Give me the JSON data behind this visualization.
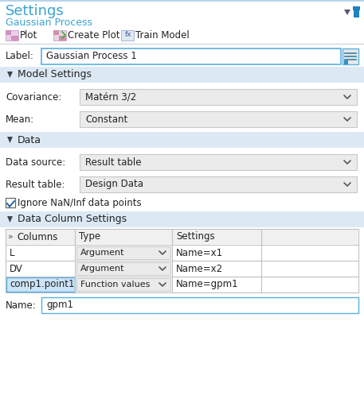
{
  "title": "Settings",
  "subtitle": "Gaussian Process",
  "toolbar_items": [
    "Plot",
    "Create Plot",
    "Train Model"
  ],
  "label_text": "Gaussian Process 1",
  "bg_color": "#ffffff",
  "header_color": "#3ba3d0",
  "section_bg": "#dce9f5",
  "top_border_color": "#b8d4e8",
  "dropdown_bg": "#ebebeb",
  "dropdown_border": "#c8c8c8",
  "input_border": "#5ab0e0",
  "table_border": "#c0c0c0",
  "selected_row_bg": "#cce4f7",
  "selected_row_border": "#5ab0e0",
  "table_header_bg": "#f0f0f0",
  "icon_pink": "#c060a0",
  "icon_blue": "#4090c0",
  "pin_color": "#2080c0",
  "section_arrow_color": "#444444",
  "text_color": "#222222",
  "label_color": "#444444",
  "name_label": "Name:",
  "name_value": "gpm1",
  "table_headers": [
    "Columns",
    "Type",
    "Settings",
    ""
  ],
  "table_rows": [
    {
      "col": "L",
      "type": "Argument",
      "settings": "Name=x1",
      "selected": false
    },
    {
      "col": "DV",
      "type": "Argument",
      "settings": "Name=x2",
      "selected": false
    },
    {
      "col": "comp1.point1",
      "type": "Function values",
      "settings": "Name=gpm1",
      "selected": true
    }
  ],
  "covariance_value": "Matérn 3/2",
  "mean_value": "Constant",
  "data_source_value": "Result table",
  "result_table_value": "Design Data",
  "checkbox_text": "Ignore NaN/Inf data points"
}
